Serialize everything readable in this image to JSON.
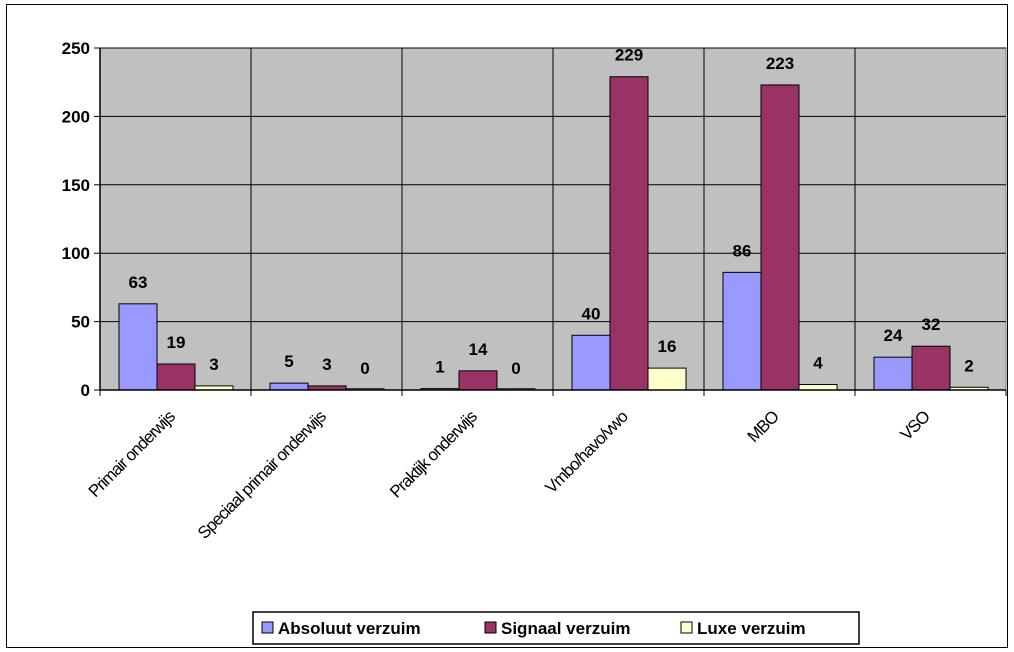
{
  "chart_data": {
    "type": "bar",
    "title": "",
    "xlabel": "",
    "ylabel": "",
    "ylim": [
      0,
      250
    ],
    "yticks": [
      0,
      50,
      100,
      150,
      200,
      250
    ],
    "grid": true,
    "legend_position": "bottom",
    "plot_background": "#c0c0c0",
    "categories": [
      "Primair onderwijs",
      "Speciaal primair onderwijs",
      "Praktijk onderwijs",
      "Vmbo/havo/vwo",
      "MBO",
      "VSO"
    ],
    "series": [
      {
        "name": "Absoluut verzuim",
        "color": "#9999ff",
        "values": [
          63,
          5,
          1,
          40,
          86,
          24
        ]
      },
      {
        "name": "Signaal verzuim",
        "color": "#993366",
        "values": [
          19,
          3,
          14,
          229,
          223,
          32
        ]
      },
      {
        "name": "Luxe verzuim",
        "color": "#ffffcc",
        "values": [
          3,
          0,
          0,
          16,
          4,
          2
        ]
      }
    ]
  }
}
